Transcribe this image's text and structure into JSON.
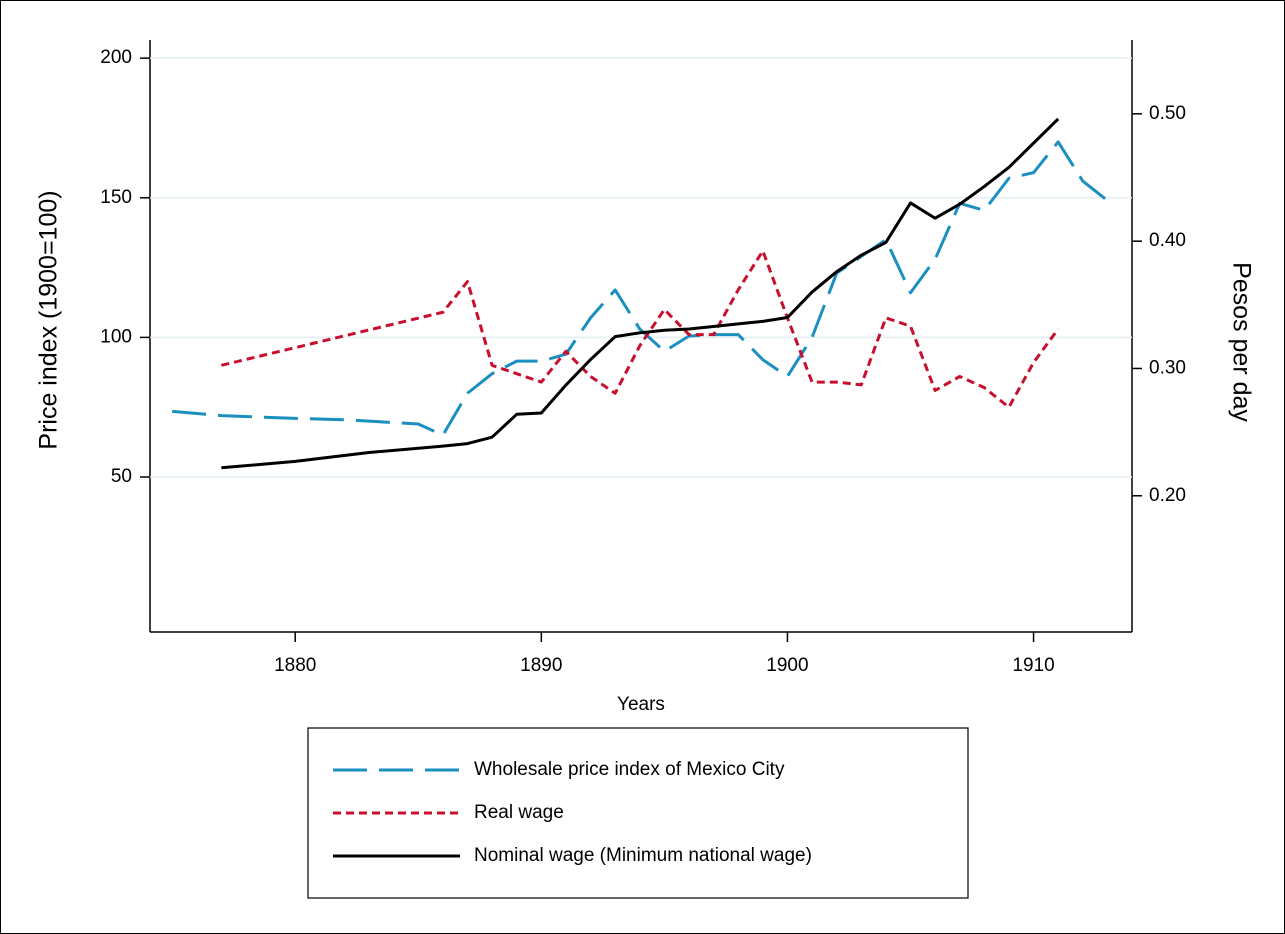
{
  "chart_data": {
    "type": "line",
    "xlabel": "Years",
    "ylabel": "Price index (1900=100)",
    "y2label": "Pesos per day",
    "xlim": [
      1874.1,
      1914
    ],
    "xticks": [
      1880,
      1890,
      1900,
      1910
    ],
    "ylim": [
      -5.5,
      206.5
    ],
    "yticks": [
      50,
      100,
      150,
      200
    ],
    "y2lim": [
      0.093,
      0.558
    ],
    "y2ticks": [
      {
        "value": 0.2,
        "label": "0.20"
      },
      {
        "value": 0.3,
        "label": "0.30"
      },
      {
        "value": 0.4,
        "label": "0.40"
      },
      {
        "value": 0.5,
        "label": "0.50"
      }
    ],
    "grid": true,
    "series": [
      {
        "name": "Wholesale price index of Mexico City",
        "color": "#1a8fc0",
        "line_style": "dashed",
        "x": [
          1875,
          1877,
          1880,
          1882,
          1884,
          1885,
          1886,
          1887,
          1888,
          1889,
          1890,
          1891,
          1892,
          1893,
          1894,
          1895,
          1896,
          1897,
          1898,
          1899,
          1900,
          1901,
          1902,
          1903,
          1904,
          1905,
          1906,
          1907,
          1908,
          1909,
          1910,
          1911,
          1912,
          1913
        ],
        "values": [
          73.5,
          72,
          71,
          70.5,
          69.5,
          69,
          65,
          80,
          87,
          91.5,
          91.5,
          94,
          107,
          117,
          103,
          95,
          100.5,
          101,
          101,
          92,
          86,
          100,
          123,
          129,
          135,
          116,
          128,
          148,
          145.5,
          157,
          159,
          170,
          156,
          149
        ]
      },
      {
        "name": "Real wage",
        "color": "#c8102e",
        "line_style": "dotted",
        "x": [
          1877,
          1886,
          1887,
          1888,
          1889,
          1890,
          1891,
          1892,
          1893,
          1894,
          1895,
          1896,
          1897,
          1898,
          1899,
          1900,
          1901,
          1902,
          1903,
          1904,
          1905,
          1906,
          1907,
          1908,
          1909,
          1910,
          1911
        ],
        "values": [
          90,
          109,
          120,
          90,
          87,
          84,
          95,
          86,
          80,
          97,
          110,
          101,
          101,
          117,
          131,
          107,
          84,
          84,
          83,
          107,
          104,
          81,
          86,
          82,
          75,
          91,
          103
        ]
      },
      {
        "name": "Nominal wage (Minimum national wage)",
        "color": "#000000",
        "line_style": "solid",
        "axis": "y2",
        "x": [
          1877,
          1880,
          1883,
          1886,
          1887,
          1888,
          1889,
          1890,
          1891,
          1892,
          1893,
          1894,
          1895,
          1896,
          1897,
          1898,
          1899,
          1900,
          1901,
          1902,
          1903,
          1904,
          1905,
          1906,
          1907,
          1908,
          1909,
          1910,
          1911
        ],
        "values": [
          0.222,
          0.227,
          0.234,
          0.239,
          0.241,
          0.246,
          0.264,
          0.265,
          0.287,
          0.307,
          0.325,
          0.328,
          0.33,
          0.331,
          0.333,
          0.335,
          0.337,
          0.34,
          0.36,
          0.376,
          0.389,
          0.399,
          0.43,
          0.418,
          0.429,
          0.443,
          0.458,
          0.477,
          0.496
        ]
      }
    ]
  }
}
